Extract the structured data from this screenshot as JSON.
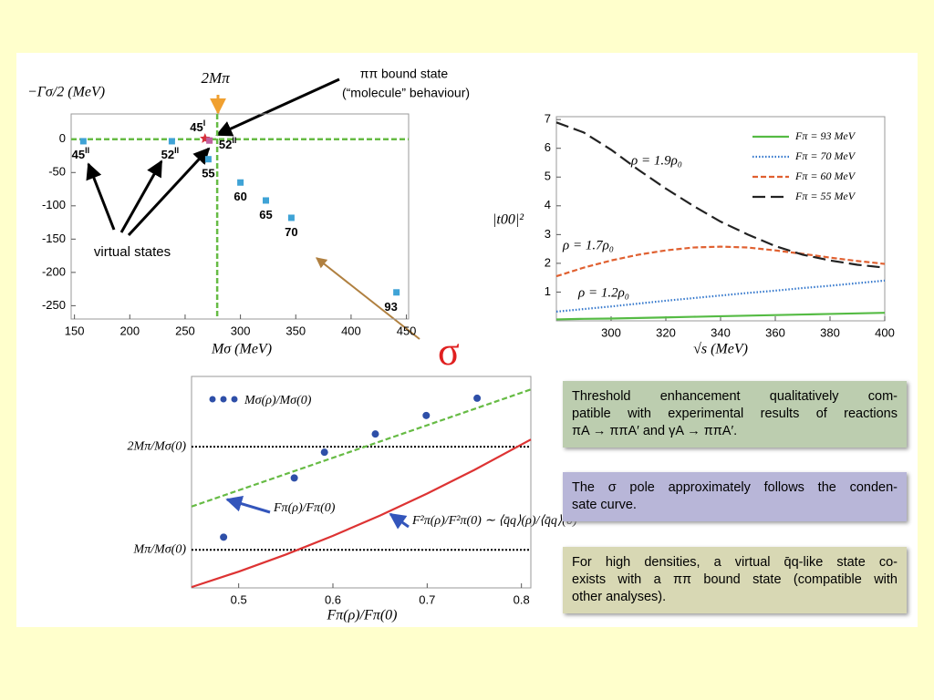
{
  "chart_data": [
    {
      "type": "scatter",
      "y_label": "−Γσ/2 (MeV)",
      "x_label": "Mσ (MeV)",
      "xlim": [
        147,
        452
      ],
      "xticks": [
        150,
        200,
        250,
        300,
        350,
        400,
        450
      ],
      "ylim": [
        -270,
        38
      ],
      "yticks": [
        0,
        -50,
        -100,
        -150,
        -200,
        -250
      ],
      "points": {
        "x": [
          158,
          238,
          268,
          272,
          271,
          300,
          323,
          346,
          441
        ],
        "values": [
          -3,
          -3,
          1,
          -2,
          -30,
          -65,
          -92,
          -118,
          -230
        ],
        "labels": [
          "45",
          "52",
          "45",
          "52",
          "55",
          "60",
          "65",
          "70",
          "93"
        ],
        "sheets": [
          "II",
          "II",
          "I",
          "II",
          null,
          null,
          null,
          null,
          null
        ],
        "colors": [
          "#3fa3d6",
          "#3fa3d6",
          "#d6303a",
          "#c060a0",
          "#3fa3d6",
          "#3fa3d6",
          "#3fa3d6",
          "#3fa3d6",
          "#3fa3d6"
        ],
        "markers": [
          "square",
          "square",
          "star",
          "square",
          "square",
          "square",
          "square",
          "square",
          "square"
        ]
      },
      "threshold": {
        "value": 279,
        "label": "2Mπ"
      },
      "line_color": "#66bb44",
      "annotations": [
        "ππ bound state",
        "(“molecule” behaviour)",
        "virtual states"
      ]
    },
    {
      "type": "line",
      "y_label": "|t00|²",
      "x_label": "√s (MeV)",
      "xlim": [
        280,
        400
      ],
      "xticks": [
        300,
        320,
        340,
        360,
        380,
        400
      ],
      "ylim": [
        0,
        7.1
      ],
      "yticks": [
        1,
        2,
        3,
        4,
        5,
        6,
        7
      ],
      "x": [
        280,
        290,
        300,
        310,
        320,
        330,
        340,
        350,
        360,
        370,
        380,
        390,
        400
      ],
      "series": [
        {
          "name": "Fπ = 93 MeV",
          "color": "#55bb44",
          "dash": "solid",
          "values": [
            0.05,
            0.07,
            0.08,
            0.1,
            0.12,
            0.14,
            0.16,
            0.18,
            0.2,
            0.22,
            0.24,
            0.26,
            0.28
          ]
        },
        {
          "name": "Fπ = 70 MeV",
          "color": "#3377cc",
          "dash": "dotted",
          "values": [
            0.32,
            0.41,
            0.5,
            0.6,
            0.7,
            0.79,
            0.88,
            0.97,
            1.05,
            1.14,
            1.22,
            1.31,
            1.4
          ]
        },
        {
          "name": "Fπ = 60 MeV",
          "color": "#e06030",
          "dash": "dashed",
          "values": [
            1.55,
            1.85,
            2.1,
            2.3,
            2.45,
            2.55,
            2.58,
            2.55,
            2.45,
            2.33,
            2.2,
            2.08,
            1.98
          ]
        },
        {
          "name": "Fπ = 55 MeV",
          "color": "#222222",
          "dash": "longdash",
          "values": [
            6.9,
            6.55,
            5.95,
            5.25,
            4.6,
            4.0,
            3.45,
            3.0,
            2.6,
            2.3,
            2.1,
            1.95,
            1.85
          ]
        }
      ],
      "legend": "upper right",
      "annotations": [
        {
          "text": "ρ = 1.9ρ₀",
          "color": "#000000"
        },
        {
          "text": "ρ = 1.7ρ₀",
          "color": "#e0307a"
        },
        {
          "text": "ρ = 1.2ρ₀",
          "color": "#2255bb"
        }
      ]
    },
    {
      "type": "scatter",
      "x_label": "Fπ(ρ)/Fπ(0)",
      "xlim": [
        0.45,
        0.81
      ],
      "xticks": [
        0.5,
        0.6,
        0.7,
        0.8
      ],
      "ylim": [
        0.2,
        0.85
      ],
      "yticks": [
        {
          "value": 0.634,
          "label": "2Mπ/Mσ(0)"
        },
        {
          "value": 0.317,
          "label": "Mπ/Mσ(0)"
        }
      ],
      "points": {
        "x": [
          0.484,
          0.559,
          0.591,
          0.645,
          0.699,
          0.753
        ],
        "values": [
          0.356,
          0.538,
          0.617,
          0.673,
          0.73,
          0.783
        ],
        "color": "#2e4fa8"
      },
      "series": [
        {
          "name": "Fπ(ρ)/Fπ(0)",
          "color": "#66bb44",
          "dash": "dashed",
          "x": [
            0.45,
            0.81
          ],
          "values": [
            0.45,
            0.81
          ]
        },
        {
          "name": "F²π(ρ)/F²π(0) ∼ ⟨q̄q⟩(ρ)/⟨q̄q⟩(0)",
          "color": "#dd3333",
          "dash": "solid",
          "x": [
            0.45,
            0.5,
            0.55,
            0.6,
            0.65,
            0.7,
            0.75,
            0.81
          ],
          "values": [
            0.2025,
            0.25,
            0.3025,
            0.36,
            0.4225,
            0.49,
            0.5625,
            0.6561
          ]
        }
      ],
      "annotations": [
        "Mσ(ρ)/Mσ(0)"
      ]
    }
  ],
  "sigma": "σ",
  "boxes": [
    {
      "color": "#bccdaf",
      "lines": [
        "Threshold enhancement qualitatively com-",
        "patible with experimental results of reactions",
        "πA → ππA′ and γA → ππA′."
      ]
    },
    {
      "color": "#b8b6d8",
      "lines": [
        "The σ pole approximately follows the conden-",
        "sate curve."
      ]
    },
    {
      "color": "#d8d8b4",
      "lines": [
        "For high densities, a virtual q̄q-like state co-",
        "exists with a ππ bound state (compatible with",
        "other analyses)."
      ]
    }
  ]
}
